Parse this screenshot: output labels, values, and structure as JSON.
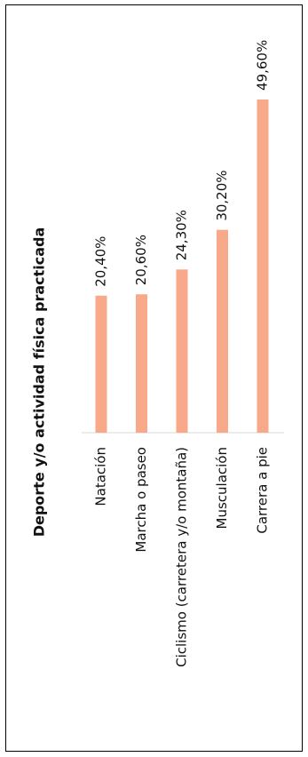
{
  "chart_data": {
    "type": "bar",
    "orientation": "horizontal",
    "title": "Deporte y/o actividad física practicada",
    "categories": [
      "Natación",
      "Marcha o paseo",
      "Ciclismo (carretera y/o montaña)",
      "Musculación",
      "Carrera a pie"
    ],
    "values": [
      20.4,
      20.6,
      24.3,
      30.2,
      49.6
    ],
    "value_labels": [
      "20,40%",
      "20,60%",
      "24,30%",
      "30,20%",
      "49,60%"
    ],
    "color": "#f7a98a"
  }
}
